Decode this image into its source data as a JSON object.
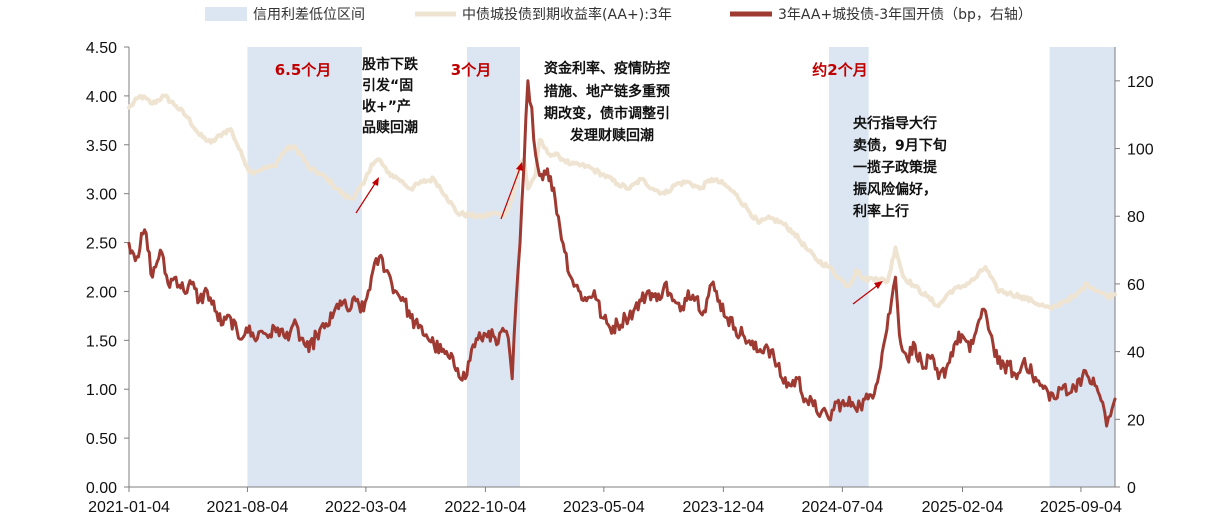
{
  "chart_data": {
    "type": "line",
    "legend": [
      {
        "label": "信用利差低位区间",
        "kind": "band",
        "color": "#dce6f2"
      },
      {
        "label": "中债城投债到期收益率(AA+):3年",
        "kind": "line",
        "color": "#efe4d2"
      },
      {
        "label": "3年AA+城投债-3年国开债（bp，右轴）",
        "kind": "line",
        "color": "#9e3a32"
      }
    ],
    "x_ticks": [
      "2021-01-04",
      "2021-08-04",
      "2022-03-04",
      "2022-10-04",
      "2023-05-04",
      "2023-12-04",
      "2024-07-04",
      "2025-02-04",
      "2025-09-04"
    ],
    "x_range": [
      "2021-01-04",
      "2025-11-04"
    ],
    "y_left": {
      "min": 0,
      "max": 4.5,
      "ticks": [
        "0.00",
        "0.50",
        "1.00",
        "1.50",
        "2.00",
        "2.50",
        "3.00",
        "3.50",
        "4.00",
        "4.50"
      ]
    },
    "y_right": {
      "min": 0,
      "max": 130,
      "ticks": [
        "0",
        "20",
        "40",
        "60",
        "80",
        "100",
        "120"
      ]
    },
    "grid": false,
    "bands": [
      {
        "start": "2021-08-04",
        "end": "2022-02-25"
      },
      {
        "start": "2022-09-01",
        "end": "2022-12-05"
      },
      {
        "start": "2024-06-10",
        "end": "2024-08-20"
      },
      {
        "start": "2025-07-10",
        "end": "2025-11-04"
      }
    ],
    "series": [
      {
        "name": "中债城投债到期收益率(AA+):3年",
        "axis": "left",
        "color": "#efe4d2",
        "points": [
          [
            "2021-01-04",
            3.88
          ],
          [
            "2021-01-25",
            4.0
          ],
          [
            "2021-02-15",
            3.92
          ],
          [
            "2021-03-08",
            4.0
          ],
          [
            "2021-03-29",
            3.9
          ],
          [
            "2021-04-19",
            3.78
          ],
          [
            "2021-05-10",
            3.6
          ],
          [
            "2021-05-31",
            3.52
          ],
          [
            "2021-06-21",
            3.62
          ],
          [
            "2021-07-05",
            3.66
          ],
          [
            "2021-07-26",
            3.38
          ],
          [
            "2021-08-09",
            3.22
          ],
          [
            "2021-08-30",
            3.25
          ],
          [
            "2021-09-20",
            3.28
          ],
          [
            "2021-10-11",
            3.45
          ],
          [
            "2021-10-25",
            3.48
          ],
          [
            "2021-11-08",
            3.4
          ],
          [
            "2021-11-22",
            3.26
          ],
          [
            "2021-12-13",
            3.2
          ],
          [
            "2022-01-03",
            3.1
          ],
          [
            "2022-01-24",
            2.98
          ],
          [
            "2022-02-07",
            2.95
          ],
          [
            "2022-02-28",
            3.1
          ],
          [
            "2022-03-14",
            3.3
          ],
          [
            "2022-03-28",
            3.35
          ],
          [
            "2022-04-11",
            3.22
          ],
          [
            "2022-05-02",
            3.15
          ],
          [
            "2022-05-23",
            3.05
          ],
          [
            "2022-06-13",
            3.12
          ],
          [
            "2022-07-04",
            3.15
          ],
          [
            "2022-07-25",
            2.98
          ],
          [
            "2022-08-15",
            2.8
          ],
          [
            "2022-09-05",
            2.78
          ],
          [
            "2022-09-26",
            2.76
          ],
          [
            "2022-10-17",
            2.8
          ],
          [
            "2022-11-07",
            2.78
          ],
          [
            "2022-11-21",
            2.95
          ],
          [
            "2022-12-05",
            3.3
          ],
          [
            "2022-12-12",
            3.35
          ],
          [
            "2022-12-19",
            3.05
          ],
          [
            "2023-01-02",
            3.2
          ],
          [
            "2023-01-09",
            3.55
          ],
          [
            "2023-01-23",
            3.42
          ],
          [
            "2023-02-13",
            3.38
          ],
          [
            "2023-03-06",
            3.3
          ],
          [
            "2023-04-03",
            3.28
          ],
          [
            "2023-05-01",
            3.2
          ],
          [
            "2023-05-29",
            3.1
          ],
          [
            "2023-06-19",
            3.05
          ],
          [
            "2023-07-10",
            3.15
          ],
          [
            "2023-07-31",
            3.05
          ],
          [
            "2023-08-21",
            3.0
          ],
          [
            "2023-09-11",
            3.1
          ],
          [
            "2023-10-02",
            3.12
          ],
          [
            "2023-10-23",
            3.05
          ],
          [
            "2023-11-13",
            3.15
          ],
          [
            "2023-12-04",
            3.1
          ],
          [
            "2023-12-25",
            3.0
          ],
          [
            "2024-01-15",
            2.85
          ],
          [
            "2024-02-05",
            2.7
          ],
          [
            "2024-02-26",
            2.75
          ],
          [
            "2024-03-18",
            2.7
          ],
          [
            "2024-04-08",
            2.6
          ],
          [
            "2024-04-29",
            2.45
          ],
          [
            "2024-05-20",
            2.32
          ],
          [
            "2024-06-10",
            2.25
          ],
          [
            "2024-07-01",
            2.12
          ],
          [
            "2024-07-15",
            2.05
          ],
          [
            "2024-07-29",
            2.22
          ],
          [
            "2024-08-12",
            2.12
          ],
          [
            "2024-09-02",
            2.14
          ],
          [
            "2024-09-23",
            2.1
          ],
          [
            "2024-10-07",
            2.45
          ],
          [
            "2024-10-21",
            2.15
          ],
          [
            "2024-11-11",
            2.05
          ],
          [
            "2024-12-02",
            1.95
          ],
          [
            "2024-12-23",
            1.85
          ],
          [
            "2025-01-13",
            2.0
          ],
          [
            "2025-02-03",
            2.05
          ],
          [
            "2025-02-24",
            2.12
          ],
          [
            "2025-03-17",
            2.25
          ],
          [
            "2025-04-07",
            2.02
          ],
          [
            "2025-04-28",
            1.98
          ],
          [
            "2025-05-19",
            1.95
          ],
          [
            "2025-06-09",
            1.9
          ],
          [
            "2025-06-30",
            1.85
          ],
          [
            "2025-07-14",
            1.82
          ],
          [
            "2025-08-04",
            1.9
          ],
          [
            "2025-08-25",
            1.95
          ],
          [
            "2025-09-15",
            2.08
          ],
          [
            "2025-10-06",
            2.0
          ],
          [
            "2025-10-20",
            1.95
          ],
          [
            "2025-11-04",
            1.97
          ]
        ]
      },
      {
        "name": "3年AA+城投债-3年国开债（bp，右轴）",
        "axis": "right",
        "color": "#9e3a32",
        "points": [
          [
            "2021-01-04",
            72
          ],
          [
            "2021-01-18",
            68
          ],
          [
            "2021-02-01",
            76
          ],
          [
            "2021-02-15",
            62
          ],
          [
            "2021-03-01",
            70
          ],
          [
            "2021-03-15",
            60
          ],
          [
            "2021-03-29",
            62
          ],
          [
            "2021-04-12",
            58
          ],
          [
            "2021-04-26",
            60
          ],
          [
            "2021-05-10",
            55
          ],
          [
            "2021-05-24",
            58
          ],
          [
            "2021-06-07",
            52
          ],
          [
            "2021-06-21",
            48
          ],
          [
            "2021-07-05",
            50
          ],
          [
            "2021-07-19",
            44
          ],
          [
            "2021-08-02",
            47
          ],
          [
            "2021-08-16",
            44
          ],
          [
            "2021-08-30",
            46
          ],
          [
            "2021-09-13",
            45
          ],
          [
            "2021-09-27",
            47
          ],
          [
            "2021-10-11",
            44
          ],
          [
            "2021-10-25",
            48
          ],
          [
            "2021-11-08",
            44
          ],
          [
            "2021-11-22",
            40
          ],
          [
            "2021-12-06",
            45
          ],
          [
            "2021-12-20",
            47
          ],
          [
            "2022-01-03",
            50
          ],
          [
            "2022-01-17",
            55
          ],
          [
            "2022-01-31",
            52
          ],
          [
            "2022-02-14",
            55
          ],
          [
            "2022-02-28",
            52
          ],
          [
            "2022-03-14",
            62
          ],
          [
            "2022-03-28",
            68
          ],
          [
            "2022-04-11",
            64
          ],
          [
            "2022-04-25",
            58
          ],
          [
            "2022-05-09",
            56
          ],
          [
            "2022-05-23",
            50
          ],
          [
            "2022-06-06",
            47
          ],
          [
            "2022-06-20",
            45
          ],
          [
            "2022-07-04",
            42
          ],
          [
            "2022-07-18",
            40
          ],
          [
            "2022-08-01",
            38
          ],
          [
            "2022-08-15",
            35
          ],
          [
            "2022-08-29",
            32
          ],
          [
            "2022-09-12",
            42
          ],
          [
            "2022-09-26",
            44
          ],
          [
            "2022-10-10",
            46
          ],
          [
            "2022-10-24",
            42
          ],
          [
            "2022-11-07",
            46
          ],
          [
            "2022-11-14",
            44
          ],
          [
            "2022-11-21",
            32
          ],
          [
            "2022-11-28",
            55
          ],
          [
            "2022-12-05",
            72
          ],
          [
            "2022-12-12",
            95
          ],
          [
            "2022-12-19",
            120
          ],
          [
            "2022-12-26",
            112
          ],
          [
            "2023-01-02",
            98
          ],
          [
            "2023-01-09",
            92
          ],
          [
            "2023-01-23",
            94
          ],
          [
            "2023-02-06",
            85
          ],
          [
            "2023-02-20",
            72
          ],
          [
            "2023-03-06",
            62
          ],
          [
            "2023-03-20",
            58
          ],
          [
            "2023-04-03",
            55
          ],
          [
            "2023-04-17",
            58
          ],
          [
            "2023-05-01",
            50
          ],
          [
            "2023-05-15",
            47
          ],
          [
            "2023-05-29",
            48
          ],
          [
            "2023-06-12",
            50
          ],
          [
            "2023-06-26",
            52
          ],
          [
            "2023-07-10",
            55
          ],
          [
            "2023-07-24",
            58
          ],
          [
            "2023-08-07",
            55
          ],
          [
            "2023-08-21",
            60
          ],
          [
            "2023-09-04",
            55
          ],
          [
            "2023-09-18",
            52
          ],
          [
            "2023-10-02",
            58
          ],
          [
            "2023-10-16",
            56
          ],
          [
            "2023-10-30",
            52
          ],
          [
            "2023-11-13",
            60
          ],
          [
            "2023-11-27",
            55
          ],
          [
            "2023-12-11",
            50
          ],
          [
            "2023-12-25",
            47
          ],
          [
            "2024-01-08",
            45
          ],
          [
            "2024-01-22",
            42
          ],
          [
            "2024-02-05",
            40
          ],
          [
            "2024-02-19",
            42
          ],
          [
            "2024-03-04",
            38
          ],
          [
            "2024-03-18",
            32
          ],
          [
            "2024-04-01",
            30
          ],
          [
            "2024-04-15",
            32
          ],
          [
            "2024-04-29",
            26
          ],
          [
            "2024-05-13",
            24
          ],
          [
            "2024-05-27",
            22
          ],
          [
            "2024-06-10",
            20
          ],
          [
            "2024-06-24",
            25
          ],
          [
            "2024-07-08",
            24
          ],
          [
            "2024-07-22",
            25
          ],
          [
            "2024-08-05",
            24
          ],
          [
            "2024-08-19",
            26
          ],
          [
            "2024-09-02",
            30
          ],
          [
            "2024-09-16",
            42
          ],
          [
            "2024-09-30",
            55
          ],
          [
            "2024-10-07",
            62
          ],
          [
            "2024-10-14",
            45
          ],
          [
            "2024-10-28",
            38
          ],
          [
            "2024-11-11",
            42
          ],
          [
            "2024-11-25",
            35
          ],
          [
            "2024-12-09",
            38
          ],
          [
            "2024-12-23",
            32
          ],
          [
            "2025-01-06",
            35
          ],
          [
            "2025-01-20",
            42
          ],
          [
            "2025-02-03",
            45
          ],
          [
            "2025-02-17",
            40
          ],
          [
            "2025-03-03",
            48
          ],
          [
            "2025-03-17",
            52
          ],
          [
            "2025-03-31",
            42
          ],
          [
            "2025-04-14",
            35
          ],
          [
            "2025-04-28",
            36
          ],
          [
            "2025-05-12",
            32
          ],
          [
            "2025-05-26",
            38
          ],
          [
            "2025-06-09",
            33
          ],
          [
            "2025-06-23",
            30
          ],
          [
            "2025-07-07",
            28
          ],
          [
            "2025-07-21",
            26
          ],
          [
            "2025-08-04",
            30
          ],
          [
            "2025-08-18",
            28
          ],
          [
            "2025-09-01",
            32
          ],
          [
            "2025-09-15",
            33
          ],
          [
            "2025-09-29",
            30
          ],
          [
            "2025-10-13",
            25
          ],
          [
            "2025-10-20",
            18
          ],
          [
            "2025-10-27",
            21
          ],
          [
            "2025-11-04",
            26
          ]
        ]
      }
    ],
    "annotations": [
      {
        "text": "6.5个月",
        "color": "red",
        "lines": [
          "6.5个月"
        ]
      },
      {
        "text": "3个月",
        "color": "red",
        "lines": [
          "3个月"
        ]
      },
      {
        "text": "约2个月",
        "color": "red",
        "lines": [
          "约2个月"
        ]
      },
      {
        "text": "股市下跌引发“固收+”产品赎回潮",
        "lines": [
          "股市下跌",
          "引发“固",
          "收+”产",
          "品赎回潮"
        ]
      },
      {
        "text": "资金利率、疫情防控措施、地产链多重预期改变，债市调整引发理财赎回潮",
        "lines": [
          "资金利率、疫情防控",
          "措施、地产链多重预",
          "期改变，债市调整引",
          "发理财赎回潮"
        ]
      },
      {
        "text": "央行指导大行卖债，9月下旬一揽子政策提振风险偏好，利率上行",
        "lines": [
          "央行指导大行",
          "卖债，9月下旬",
          "一揽子政策提",
          "振风险偏好，",
          "利率上行"
        ]
      }
    ]
  }
}
